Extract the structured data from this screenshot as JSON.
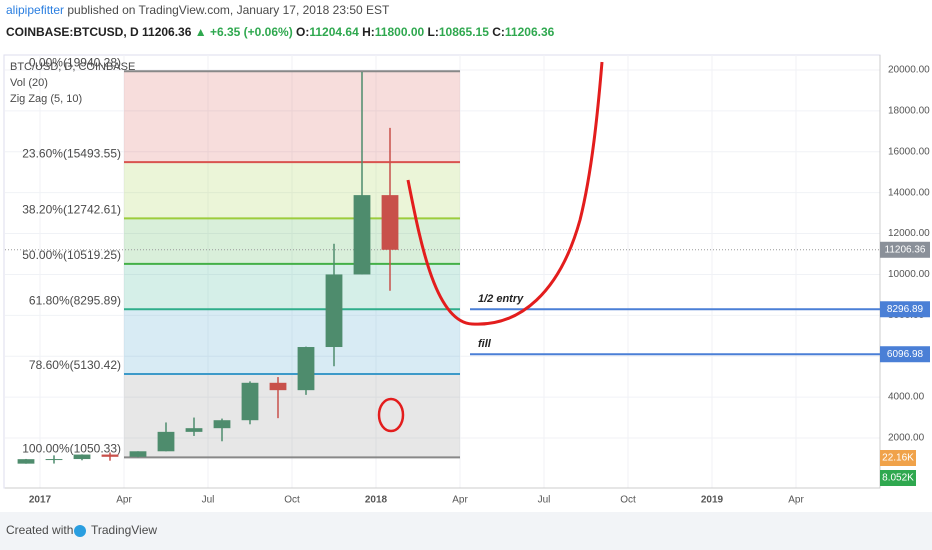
{
  "header": {
    "author": "alipipefitter",
    "published": "published on TradingView.com, January 17, 2018 23:50 EST",
    "symbol": "COINBASE:BTCUSD, D",
    "last": "11206.36",
    "change": "▲ +6.35 (+0.06%)",
    "quote": [
      {
        "label": "O:",
        "value": "11204.64"
      },
      {
        "label": "H:",
        "value": "11800.00"
      },
      {
        "label": "L:",
        "value": "10865.15"
      },
      {
        "label": "C:",
        "value": "11206.36"
      }
    ]
  },
  "chart_data": {
    "type": "candlestick",
    "legend": [
      "BTC/USD, D, COINBASE",
      "Vol (20)",
      "Zig Zag (5, 10)"
    ],
    "x": [
      "2016-12",
      "2017-01",
      "2017-02",
      "2017-03",
      "2017-04",
      "2017-05",
      "2017-06",
      "2017-07",
      "2017-08",
      "2017-09",
      "2017-10",
      "2017-11",
      "2017-12",
      "2018-01"
    ],
    "open": [
      745,
      964,
      970,
      1190,
      1080,
      1350,
      2300,
      2480,
      2870,
      4700,
      4340,
      6450,
      10000,
      13880
    ],
    "high": [
      975,
      1150,
      1200,
      1290,
      1350,
      2760,
      3000,
      2950,
      4770,
      4980,
      6470,
      11500,
      19900,
      17170
    ],
    "low": [
      742,
      750,
      910,
      890,
      1060,
      1350,
      2100,
      1840,
      2670,
      2970,
      4110,
      5510,
      10000,
      9200
    ],
    "close": [
      964,
      970,
      1190,
      1080,
      1350,
      2300,
      2480,
      2870,
      4700,
      4340,
      6450,
      10000,
      13880,
      11206
    ],
    "up_color": "#4e8c6d",
    "down_color": "#c8504a",
    "xlim": [
      "2016-12",
      "2019-07"
    ],
    "xticks": [
      {
        "value": "2017-01",
        "label": "2017"
      },
      {
        "value": "2017-04",
        "label": "Apr"
      },
      {
        "value": "2017-07",
        "label": "Jul"
      },
      {
        "value": "2017-10",
        "label": "Oct"
      },
      {
        "value": "2018-01",
        "label": "2018"
      },
      {
        "value": "2018-04",
        "label": "Apr"
      },
      {
        "value": "2018-07",
        "label": "Jul"
      },
      {
        "value": "2018-10",
        "label": "Oct"
      },
      {
        "value": "2019-01",
        "label": "2019"
      },
      {
        "value": "2019-04",
        "label": "Apr"
      }
    ],
    "ylim": [
      -446,
      20734
    ],
    "yticks": [
      {
        "value": 2000,
        "label": "2000.00"
      },
      {
        "value": 4000,
        "label": "4000.00"
      },
      {
        "value": 6000,
        "label": "6000.00"
      },
      {
        "value": 8000,
        "label": "8000.00"
      },
      {
        "value": 10000,
        "label": "10000.00"
      },
      {
        "value": 12000,
        "label": "12000.00"
      },
      {
        "value": 14000,
        "label": "14000.00"
      },
      {
        "value": 16000,
        "label": "16000.00"
      },
      {
        "value": 18000,
        "label": "18000.00"
      },
      {
        "value": 20000,
        "label": "20000.00"
      }
    ],
    "grid": true,
    "fib_range": [
      "2017-04",
      "2018-04"
    ],
    "fib_levels": [
      {
        "value": 19940.28,
        "label": "0.00%(19940.28)",
        "color": "#888888"
      },
      {
        "value": 15493.55,
        "label": "23.60%(15493.55)",
        "color": "#d9534f"
      },
      {
        "value": 12742.61,
        "label": "38.20%(12742.61)",
        "color": "#9ccc3c"
      },
      {
        "value": 10519.25,
        "label": "50.00%(10519.25)",
        "color": "#43b047"
      },
      {
        "value": 8295.89,
        "label": "61.80%(8295.89)",
        "color": "#2fae8a"
      },
      {
        "value": 5130.42,
        "label": "78.60%(5130.42)",
        "color": "#3d9ac9"
      },
      {
        "value": 1050.33,
        "label": "100.00%(1050.33)",
        "color": "#888888"
      }
    ],
    "rays": [
      {
        "value": 8296.89,
        "label": "1/2 entry",
        "from": "2018-04",
        "color": "#4a7fd6"
      },
      {
        "value": 6096.98,
        "label": "fill",
        "from": "2018-04",
        "color": "#4a7fd6"
      }
    ],
    "last_price": 11206.36,
    "volume_badges": [
      {
        "value": 22160,
        "label": "22.16K",
        "color": "#f0a24a"
      },
      {
        "value": 8052,
        "label": "8.052K",
        "color": "#2fa84f"
      }
    ]
  },
  "footer": {
    "created": "Created with",
    "brand": "TradingView"
  }
}
